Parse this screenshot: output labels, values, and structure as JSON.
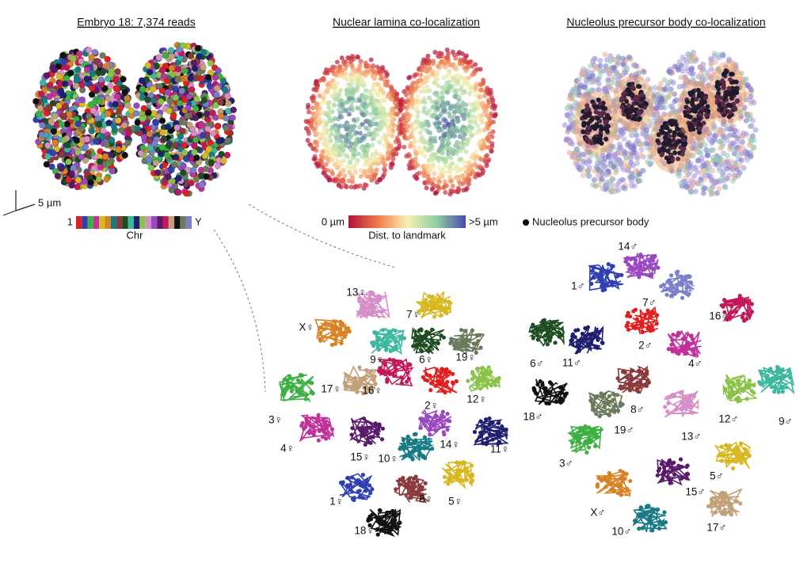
{
  "panels": {
    "embryo": {
      "title": "Embryo 18: 7,374 reads",
      "scale_bar": "5 µm",
      "chr_legend": {
        "start": "1",
        "end": "Y",
        "label": "Chr"
      }
    },
    "lamina": {
      "title": "Nuclear lamina co-localization",
      "colorbar": {
        "min_label": "0 µm",
        "max_label": ">5 µm",
        "label": "Dist. to landmark"
      }
    },
    "nucleolus": {
      "title": "Nucleolus precursor body co-localization",
      "legend": "Nucleolus precursor body"
    }
  },
  "maternal": {
    "labels": [
      "13♀",
      "7♀",
      "X♀",
      "9♀",
      "6♀",
      "19♀",
      "17♀",
      "16♀",
      "12♀",
      "2♀",
      "3♀",
      "4♀",
      "15♀",
      "10♀",
      "14♀",
      "11♀",
      "1♀",
      "8♀",
      "5♀",
      "18♀"
    ]
  },
  "paternal": {
    "labels": [
      "14♂",
      "1♂",
      "7♂",
      "16♂",
      "2♂",
      "11♂",
      "6♂",
      "4♂",
      "12♂",
      "9♂",
      "18♂",
      "8♂",
      "19♂",
      "13♂",
      "3♂",
      "5♂",
      "15♂",
      "X♂",
      "10♂",
      "17♂"
    ]
  }
}
